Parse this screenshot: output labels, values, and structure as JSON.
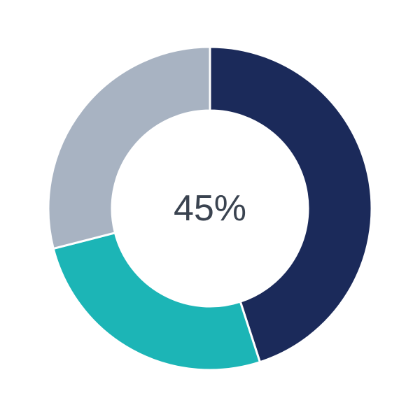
{
  "chart_data": {
    "type": "pie",
    "variant": "donut",
    "values": [
      45,
      26,
      29
    ],
    "colors": [
      "#1b2a5a",
      "#1cb5b6",
      "#a8b3c2"
    ],
    "center_label": "45%",
    "start_angle": "top",
    "direction": "clockwise",
    "legend": "none"
  }
}
